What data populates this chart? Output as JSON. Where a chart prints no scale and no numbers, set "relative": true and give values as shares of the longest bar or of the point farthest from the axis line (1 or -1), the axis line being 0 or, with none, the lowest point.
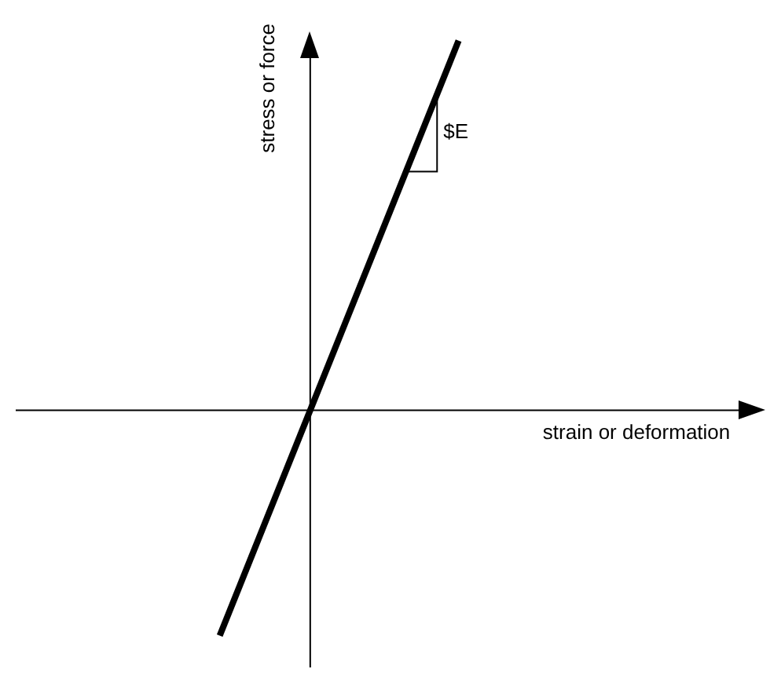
{
  "chart_data": {
    "type": "line",
    "relative": true,
    "xlabel": "strain or deformation",
    "ylabel": "stress or force",
    "annotations": [
      "$E"
    ],
    "categories": [
      null,
      null
    ],
    "series": [
      {
        "color": "#000000",
        "values": [
          -0.61,
          1
        ]
      }
    ],
    "legend": false,
    "marker": "none",
    "line_style": "solid"
  }
}
